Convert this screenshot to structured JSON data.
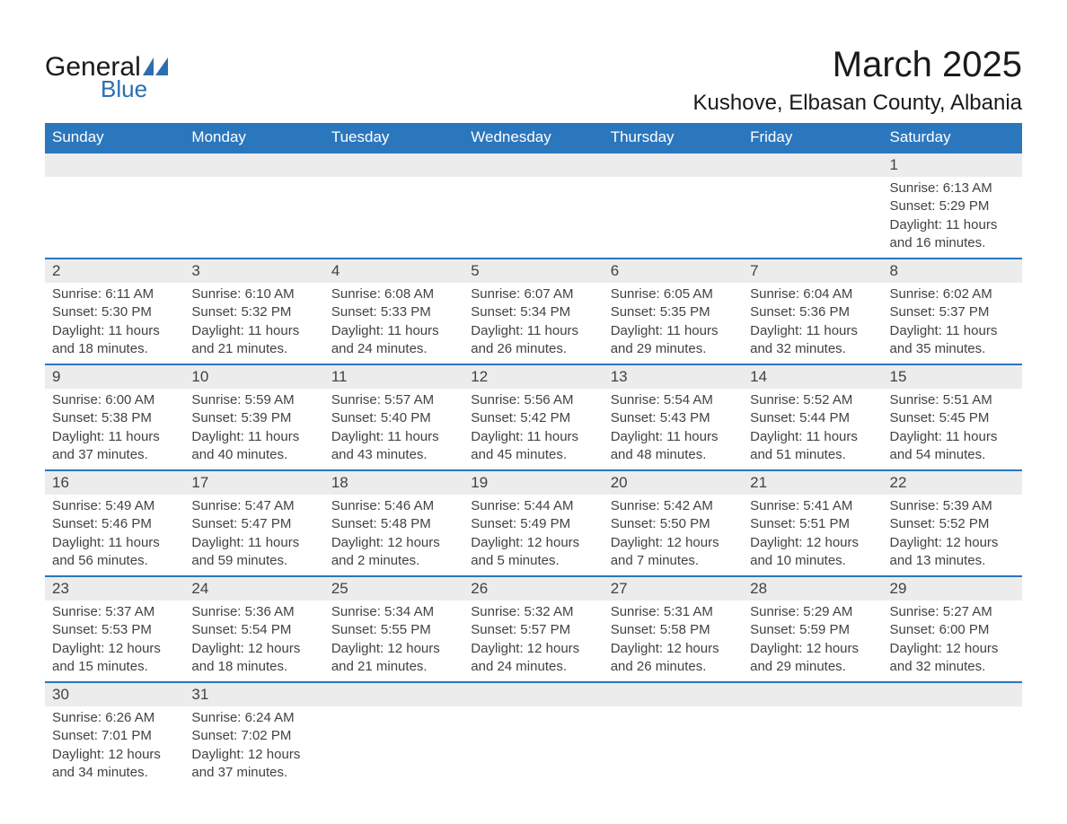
{
  "logo": {
    "general": "General",
    "blue": "Blue",
    "shape_color": "#2b6fb0"
  },
  "title": "March 2025",
  "subtitle": "Kushove, Elbasan County, Albania",
  "colors": {
    "header_bg": "#2b77bd",
    "header_text": "#ffffff",
    "cell_border": "#2b77bd",
    "daynum_bg": "#ececec",
    "text": "#424242",
    "page_bg": "#ffffff"
  },
  "typography": {
    "title_fontsize": 40,
    "subtitle_fontsize": 24,
    "header_fontsize": 17,
    "daynum_fontsize": 17,
    "detail_fontsize": 15
  },
  "day_labels": [
    "Sunday",
    "Monday",
    "Tuesday",
    "Wednesday",
    "Thursday",
    "Friday",
    "Saturday"
  ],
  "weeks": [
    [
      null,
      null,
      null,
      null,
      null,
      null,
      {
        "n": "1",
        "sr": "Sunrise: 6:13 AM",
        "ss": "Sunset: 5:29 PM",
        "dl": "Daylight: 11 hours and 16 minutes."
      }
    ],
    [
      {
        "n": "2",
        "sr": "Sunrise: 6:11 AM",
        "ss": "Sunset: 5:30 PM",
        "dl": "Daylight: 11 hours and 18 minutes."
      },
      {
        "n": "3",
        "sr": "Sunrise: 6:10 AM",
        "ss": "Sunset: 5:32 PM",
        "dl": "Daylight: 11 hours and 21 minutes."
      },
      {
        "n": "4",
        "sr": "Sunrise: 6:08 AM",
        "ss": "Sunset: 5:33 PM",
        "dl": "Daylight: 11 hours and 24 minutes."
      },
      {
        "n": "5",
        "sr": "Sunrise: 6:07 AM",
        "ss": "Sunset: 5:34 PM",
        "dl": "Daylight: 11 hours and 26 minutes."
      },
      {
        "n": "6",
        "sr": "Sunrise: 6:05 AM",
        "ss": "Sunset: 5:35 PM",
        "dl": "Daylight: 11 hours and 29 minutes."
      },
      {
        "n": "7",
        "sr": "Sunrise: 6:04 AM",
        "ss": "Sunset: 5:36 PM",
        "dl": "Daylight: 11 hours and 32 minutes."
      },
      {
        "n": "8",
        "sr": "Sunrise: 6:02 AM",
        "ss": "Sunset: 5:37 PM",
        "dl": "Daylight: 11 hours and 35 minutes."
      }
    ],
    [
      {
        "n": "9",
        "sr": "Sunrise: 6:00 AM",
        "ss": "Sunset: 5:38 PM",
        "dl": "Daylight: 11 hours and 37 minutes."
      },
      {
        "n": "10",
        "sr": "Sunrise: 5:59 AM",
        "ss": "Sunset: 5:39 PM",
        "dl": "Daylight: 11 hours and 40 minutes."
      },
      {
        "n": "11",
        "sr": "Sunrise: 5:57 AM",
        "ss": "Sunset: 5:40 PM",
        "dl": "Daylight: 11 hours and 43 minutes."
      },
      {
        "n": "12",
        "sr": "Sunrise: 5:56 AM",
        "ss": "Sunset: 5:42 PM",
        "dl": "Daylight: 11 hours and 45 minutes."
      },
      {
        "n": "13",
        "sr": "Sunrise: 5:54 AM",
        "ss": "Sunset: 5:43 PM",
        "dl": "Daylight: 11 hours and 48 minutes."
      },
      {
        "n": "14",
        "sr": "Sunrise: 5:52 AM",
        "ss": "Sunset: 5:44 PM",
        "dl": "Daylight: 11 hours and 51 minutes."
      },
      {
        "n": "15",
        "sr": "Sunrise: 5:51 AM",
        "ss": "Sunset: 5:45 PM",
        "dl": "Daylight: 11 hours and 54 minutes."
      }
    ],
    [
      {
        "n": "16",
        "sr": "Sunrise: 5:49 AM",
        "ss": "Sunset: 5:46 PM",
        "dl": "Daylight: 11 hours and 56 minutes."
      },
      {
        "n": "17",
        "sr": "Sunrise: 5:47 AM",
        "ss": "Sunset: 5:47 PM",
        "dl": "Daylight: 11 hours and 59 minutes."
      },
      {
        "n": "18",
        "sr": "Sunrise: 5:46 AM",
        "ss": "Sunset: 5:48 PM",
        "dl": "Daylight: 12 hours and 2 minutes."
      },
      {
        "n": "19",
        "sr": "Sunrise: 5:44 AM",
        "ss": "Sunset: 5:49 PM",
        "dl": "Daylight: 12 hours and 5 minutes."
      },
      {
        "n": "20",
        "sr": "Sunrise: 5:42 AM",
        "ss": "Sunset: 5:50 PM",
        "dl": "Daylight: 12 hours and 7 minutes."
      },
      {
        "n": "21",
        "sr": "Sunrise: 5:41 AM",
        "ss": "Sunset: 5:51 PM",
        "dl": "Daylight: 12 hours and 10 minutes."
      },
      {
        "n": "22",
        "sr": "Sunrise: 5:39 AM",
        "ss": "Sunset: 5:52 PM",
        "dl": "Daylight: 12 hours and 13 minutes."
      }
    ],
    [
      {
        "n": "23",
        "sr": "Sunrise: 5:37 AM",
        "ss": "Sunset: 5:53 PM",
        "dl": "Daylight: 12 hours and 15 minutes."
      },
      {
        "n": "24",
        "sr": "Sunrise: 5:36 AM",
        "ss": "Sunset: 5:54 PM",
        "dl": "Daylight: 12 hours and 18 minutes."
      },
      {
        "n": "25",
        "sr": "Sunrise: 5:34 AM",
        "ss": "Sunset: 5:55 PM",
        "dl": "Daylight: 12 hours and 21 minutes."
      },
      {
        "n": "26",
        "sr": "Sunrise: 5:32 AM",
        "ss": "Sunset: 5:57 PM",
        "dl": "Daylight: 12 hours and 24 minutes."
      },
      {
        "n": "27",
        "sr": "Sunrise: 5:31 AM",
        "ss": "Sunset: 5:58 PM",
        "dl": "Daylight: 12 hours and 26 minutes."
      },
      {
        "n": "28",
        "sr": "Sunrise: 5:29 AM",
        "ss": "Sunset: 5:59 PM",
        "dl": "Daylight: 12 hours and 29 minutes."
      },
      {
        "n": "29",
        "sr": "Sunrise: 5:27 AM",
        "ss": "Sunset: 6:00 PM",
        "dl": "Daylight: 12 hours and 32 minutes."
      }
    ],
    [
      {
        "n": "30",
        "sr": "Sunrise: 6:26 AM",
        "ss": "Sunset: 7:01 PM",
        "dl": "Daylight: 12 hours and 34 minutes."
      },
      {
        "n": "31",
        "sr": "Sunrise: 6:24 AM",
        "ss": "Sunset: 7:02 PM",
        "dl": "Daylight: 12 hours and 37 minutes."
      },
      null,
      null,
      null,
      null,
      null
    ]
  ]
}
